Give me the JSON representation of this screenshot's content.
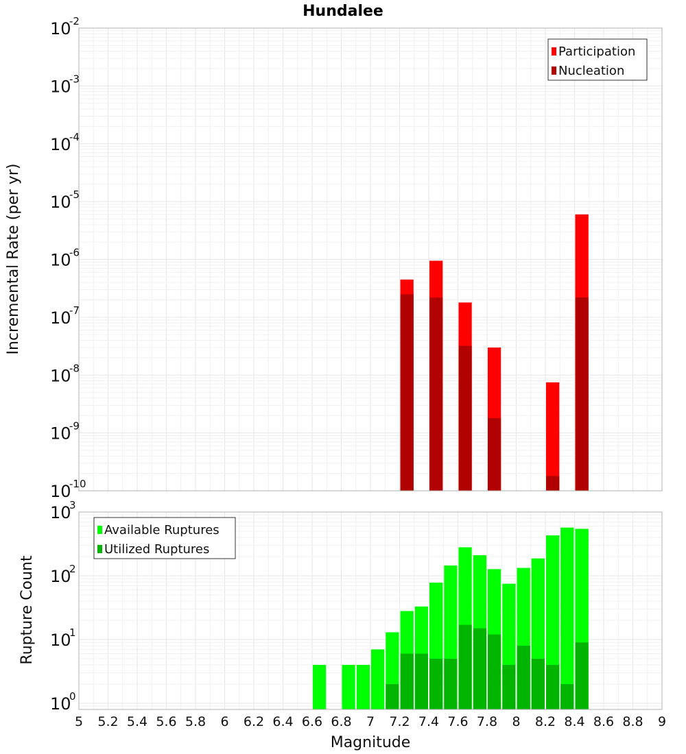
{
  "chart_data": [
    {
      "type": "bar",
      "title": "Hundalee",
      "ylabel": "Incremental Rate (per yr)",
      "xlabel": "",
      "xlim": [
        5,
        9
      ],
      "yscale": "log",
      "ylim": [
        1e-10,
        0.01
      ],
      "bin_width": 0.1,
      "grid": true,
      "legend_position": "top-right",
      "series": [
        {
          "name": "Participation",
          "color": "#ff0000",
          "points": [
            {
              "x": 7.25,
              "y": 4.5e-07
            },
            {
              "x": 7.45,
              "y": 9.5e-07
            },
            {
              "x": 7.65,
              "y": 1.8e-07
            },
            {
              "x": 7.85,
              "y": 3e-08
            },
            {
              "x": 8.25,
              "y": 7.5e-09
            },
            {
              "x": 8.45,
              "y": 6e-06
            }
          ]
        },
        {
          "name": "Nucleation",
          "color": "#b00000",
          "points": [
            {
              "x": 7.25,
              "y": 2.5e-07
            },
            {
              "x": 7.45,
              "y": 2.2e-07
            },
            {
              "x": 7.65,
              "y": 3.2e-08
            },
            {
              "x": 7.85,
              "y": 1.8e-09
            },
            {
              "x": 8.25,
              "y": 1.8e-10
            },
            {
              "x": 8.45,
              "y": 2.2e-07
            }
          ]
        }
      ]
    },
    {
      "type": "bar",
      "title": "",
      "ylabel": "Rupture Count",
      "xlabel": "Magnitude",
      "xlim": [
        5,
        9
      ],
      "yscale": "log",
      "ylim": [
        0.8,
        1000
      ],
      "bin_width": 0.1,
      "grid": true,
      "legend_position": "top-left",
      "x_tick_labels": [
        "5",
        "5.2",
        "5.4",
        "5.6",
        "5.8",
        "6",
        "6.2",
        "6.4",
        "6.6",
        "6.8",
        "7",
        "7.2",
        "7.4",
        "7.6",
        "7.8",
        "8",
        "8.2",
        "8.4",
        "8.6",
        "8.8",
        "9"
      ],
      "series": [
        {
          "name": "Available Ruptures",
          "color": "#00ff00",
          "points": [
            {
              "x": 6.65,
              "y": 4
            },
            {
              "x": 6.85,
              "y": 4
            },
            {
              "x": 6.95,
              "y": 4
            },
            {
              "x": 7.05,
              "y": 7
            },
            {
              "x": 7.15,
              "y": 13
            },
            {
              "x": 7.25,
              "y": 28
            },
            {
              "x": 7.35,
              "y": 33
            },
            {
              "x": 7.45,
              "y": 78
            },
            {
              "x": 7.55,
              "y": 145
            },
            {
              "x": 7.65,
              "y": 280
            },
            {
              "x": 7.75,
              "y": 210
            },
            {
              "x": 7.85,
              "y": 127
            },
            {
              "x": 7.95,
              "y": 75
            },
            {
              "x": 8.05,
              "y": 133
            },
            {
              "x": 8.15,
              "y": 187
            },
            {
              "x": 8.25,
              "y": 430
            },
            {
              "x": 8.35,
              "y": 570
            },
            {
              "x": 8.45,
              "y": 545
            }
          ]
        },
        {
          "name": "Utilized Ruptures",
          "color": "#00b400",
          "points": [
            {
              "x": 7.15,
              "y": 2
            },
            {
              "x": 7.25,
              "y": 6
            },
            {
              "x": 7.35,
              "y": 6
            },
            {
              "x": 7.45,
              "y": 5
            },
            {
              "x": 7.55,
              "y": 5
            },
            {
              "x": 7.65,
              "y": 17
            },
            {
              "x": 7.75,
              "y": 15
            },
            {
              "x": 7.85,
              "y": 12
            },
            {
              "x": 7.95,
              "y": 4
            },
            {
              "x": 8.05,
              "y": 8
            },
            {
              "x": 8.15,
              "y": 5
            },
            {
              "x": 8.25,
              "y": 4
            },
            {
              "x": 8.35,
              "y": 2
            },
            {
              "x": 8.45,
              "y": 9
            }
          ]
        }
      ]
    }
  ]
}
